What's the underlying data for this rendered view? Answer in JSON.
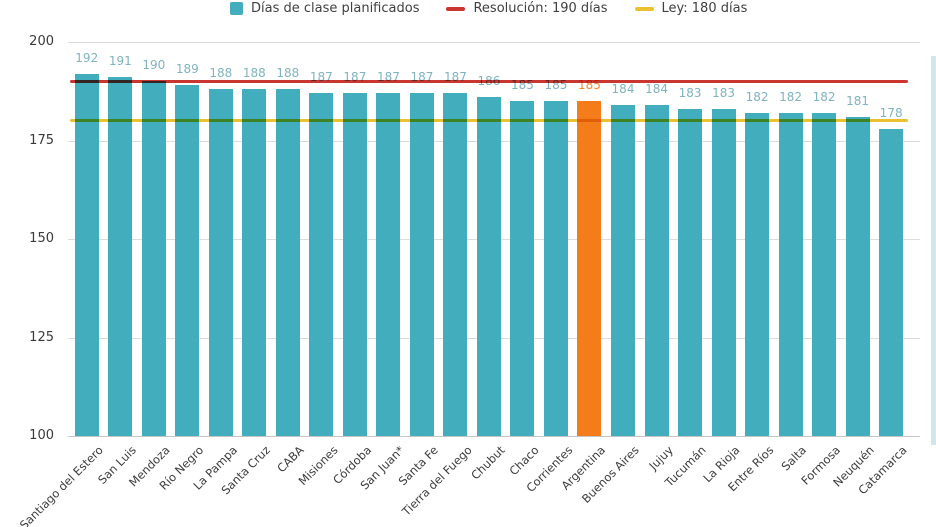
{
  "legend": {
    "bars_label": "Días de clase planificados",
    "resolution_label": "Resolución: 190 días",
    "law_label": "Ley: 180 días"
  },
  "colors": {
    "bar": "#42adbd",
    "highlight_bar": "#f57c1a",
    "resolution_line": "#c8362f",
    "law_line": "#ecc12f",
    "value_label": "#7fb3c0",
    "highlight_value_label": "#ef8a30",
    "grid": "#dcdcdc",
    "baseline": "#c6c6c6",
    "axis_text": "#3a3a3a"
  },
  "chart_data": {
    "type": "bar",
    "title": "",
    "xlabel": "",
    "ylabel": "",
    "categories": [
      "Santiago del Estero",
      "San Luis",
      "Mendoza",
      "Río Negro",
      "La Pampa",
      "Santa Cruz",
      "CABA",
      "Misiones",
      "Córdoba",
      "San Juan*",
      "Santa Fe",
      "Tierra del Fuego",
      "Chubut",
      "Chaco",
      "Corrientes",
      "Argentina",
      "Buenos Aires",
      "Jujuy",
      "Tucumán",
      "La Rioja",
      "Entre Ríos",
      "Salta",
      "Formosa",
      "Neuquén",
      "Catamarca"
    ],
    "values": [
      192,
      191,
      190,
      189,
      188,
      188,
      188,
      187,
      187,
      187,
      187,
      187,
      186,
      185,
      185,
      185,
      184,
      184,
      183,
      183,
      182,
      182,
      182,
      181,
      178
    ],
    "highlight_category": "Argentina",
    "series_name": "Días de clase planificados",
    "ylim": [
      100,
      200
    ],
    "yticks": [
      100,
      125,
      150,
      175,
      200
    ],
    "grid": true,
    "legend_position": "top",
    "reference_lines": [
      {
        "name": "Resolución",
        "label": "Resolución: 190 días",
        "value": 190
      },
      {
        "name": "Ley",
        "label": "Ley: 180 días",
        "value": 180
      }
    ]
  }
}
